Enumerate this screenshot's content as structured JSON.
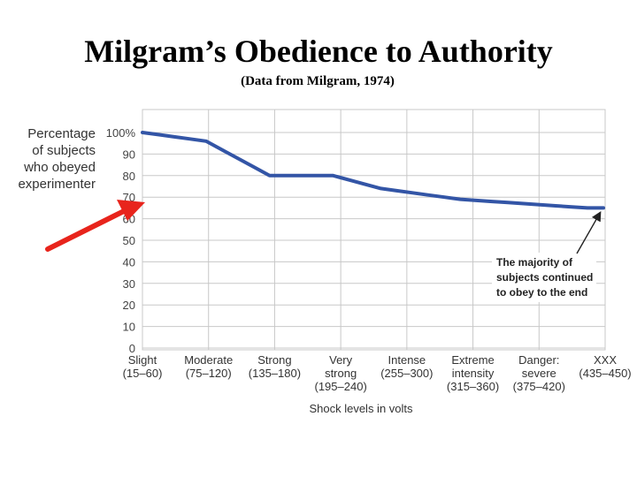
{
  "title": "Milgram’s Obedience to Authority",
  "subtitle": "(Data from Milgram, 1974)",
  "chart_data": {
    "type": "line",
    "ylabel": [
      "Percentage",
      "of subjects",
      "who obeyed",
      "experimenter"
    ],
    "xlabel": "Shock levels in volts",
    "yticks": [
      "0",
      "10",
      "20",
      "30",
      "40",
      "50",
      "60",
      "70",
      "80",
      "90",
      "100%"
    ],
    "ylim": [
      0,
      100
    ],
    "categories": [
      [
        "Slight",
        "(15–60)"
      ],
      [
        "Moderate",
        "(75–120)"
      ],
      [
        "Strong",
        "(135–180)"
      ],
      [
        "Very",
        "strong",
        "(195–240)"
      ],
      [
        "Intense",
        "(255–300)"
      ],
      [
        "Extreme",
        "intensity",
        "(315–360)"
      ],
      [
        "Danger:",
        "severe",
        "(375–420)"
      ],
      [
        "XXX",
        "(435–450)"
      ]
    ],
    "x": [
      15,
      30,
      45,
      60,
      75,
      90,
      105,
      120,
      135,
      150,
      165,
      180,
      195,
      210,
      225,
      240,
      255,
      270,
      285,
      300,
      315,
      330,
      345,
      360,
      375,
      390,
      405,
      420,
      435,
      450
    ],
    "series": [
      {
        "values": [
          100,
          99,
          98,
          97,
          96,
          92,
          88,
          84,
          80,
          80,
          80,
          80,
          80,
          78,
          76,
          74,
          73,
          72,
          71,
          70,
          69,
          68.5,
          68,
          67.5,
          67,
          66.5,
          66,
          65.5,
          65,
          65
        ]
      }
    ],
    "grid": true,
    "annotation": [
      "The majority of",
      "subjects continued",
      "to obey to the end"
    ],
    "line_color": "#3355a6",
    "arrow_color": "#e8241c"
  }
}
